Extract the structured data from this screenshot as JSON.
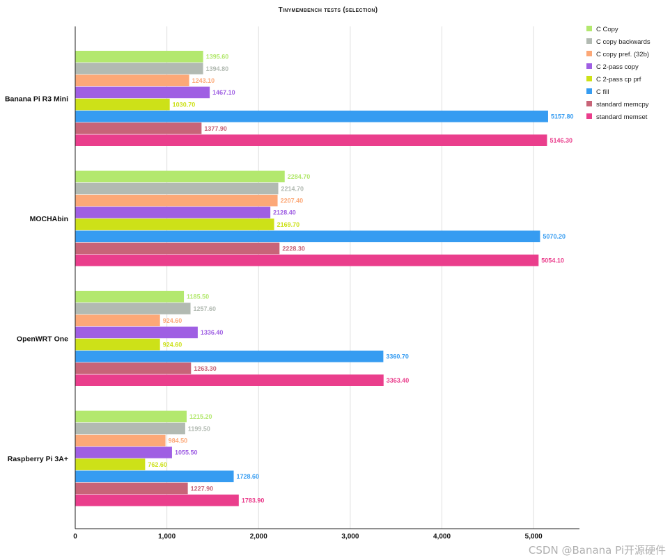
{
  "chart_data": {
    "type": "bar",
    "orientation": "horizontal",
    "title": "Tinymembench tests (selection)",
    "categories": [
      "Banana Pi R3 Mini",
      "MOCHAbin",
      "OpenWRT One",
      "Raspberry Pi 3A+"
    ],
    "series": [
      {
        "name": "C Copy",
        "color": "#b3e86e",
        "values": [
          1395.6,
          2284.7,
          1185.5,
          1215.2
        ],
        "labels": [
          "1395.60",
          "2284.70",
          "1185.50",
          "1215.20"
        ]
      },
      {
        "name": "C copy backwards",
        "color": "#b2bab2",
        "values": [
          1394.8,
          2214.7,
          1257.6,
          1199.5
        ],
        "labels": [
          "1394.80",
          "2214.70",
          "1257.60",
          "1199.50"
        ]
      },
      {
        "name": "C copy pref. (32b)",
        "color": "#fca877",
        "values": [
          1243.1,
          2207.4,
          924.6,
          984.5
        ],
        "labels": [
          "1243.10",
          "2207.40",
          "924.60",
          "984.50"
        ]
      },
      {
        "name": "C 2-pass copy",
        "color": "#9f5fe3",
        "values": [
          1467.1,
          2128.4,
          1336.4,
          1055.5
        ],
        "labels": [
          "1467.10",
          "2128.40",
          "1336.40",
          "1055.50"
        ]
      },
      {
        "name": "C 2-pass cp prf",
        "color": "#cde118",
        "values": [
          1030.7,
          2169.7,
          924.6,
          762.6
        ],
        "labels": [
          "1030.70",
          "2169.70",
          "924.60",
          "762.60"
        ]
      },
      {
        "name": "C fill",
        "color": "#369cf1",
        "values": [
          5157.8,
          5070.2,
          3360.7,
          1728.6
        ],
        "labels": [
          "5157.80",
          "5070.20",
          "3360.70",
          "1728.60"
        ]
      },
      {
        "name": "standard memcpy",
        "color": "#c86478",
        "values": [
          1377.9,
          2228.3,
          1263.3,
          1227.9
        ],
        "labels": [
          "1377.90",
          "2228.30",
          "1263.30",
          "1227.90"
        ]
      },
      {
        "name": "standard memset",
        "color": "#ea3e8c",
        "values": [
          5146.3,
          5054.1,
          3363.4,
          1783.9
        ],
        "labels": [
          "5146.30",
          "5054.10",
          "3363.40",
          "1783.90"
        ]
      }
    ],
    "xlim": [
      0,
      5500
    ],
    "xticks": [
      0,
      1000,
      2000,
      3000,
      4000,
      5000
    ],
    "xtick_labels": [
      "0",
      "1,000",
      "2,000",
      "3,000",
      "4,000",
      "5,000"
    ],
    "xlabel": "",
    "ylabel": "",
    "grid": true,
    "legend_position": "top-right"
  },
  "watermark": "CSDN @Banana Pi开源硬件"
}
